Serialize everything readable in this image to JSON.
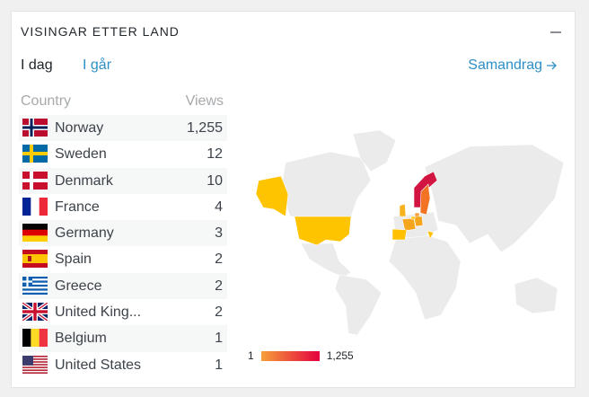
{
  "header": {
    "title": "VISINGAR ETTER LAND"
  },
  "tabs": [
    "I dag",
    "I går"
  ],
  "summary_link": "Samandrag",
  "table": {
    "columns": [
      "Country",
      "Views"
    ],
    "rows": [
      [
        "Norway",
        "1,255"
      ],
      [
        "Sweden",
        "12"
      ],
      [
        "Denmark",
        "10"
      ],
      [
        "France",
        "4"
      ],
      [
        "Germany",
        "3"
      ],
      [
        "Spain",
        "2"
      ],
      [
        "Greece",
        "2"
      ],
      [
        "United King...",
        "2"
      ],
      [
        "Belgium",
        "1"
      ],
      [
        "United States",
        "1"
      ]
    ]
  },
  "legend": {
    "min": "1",
    "max": "1,255"
  }
}
